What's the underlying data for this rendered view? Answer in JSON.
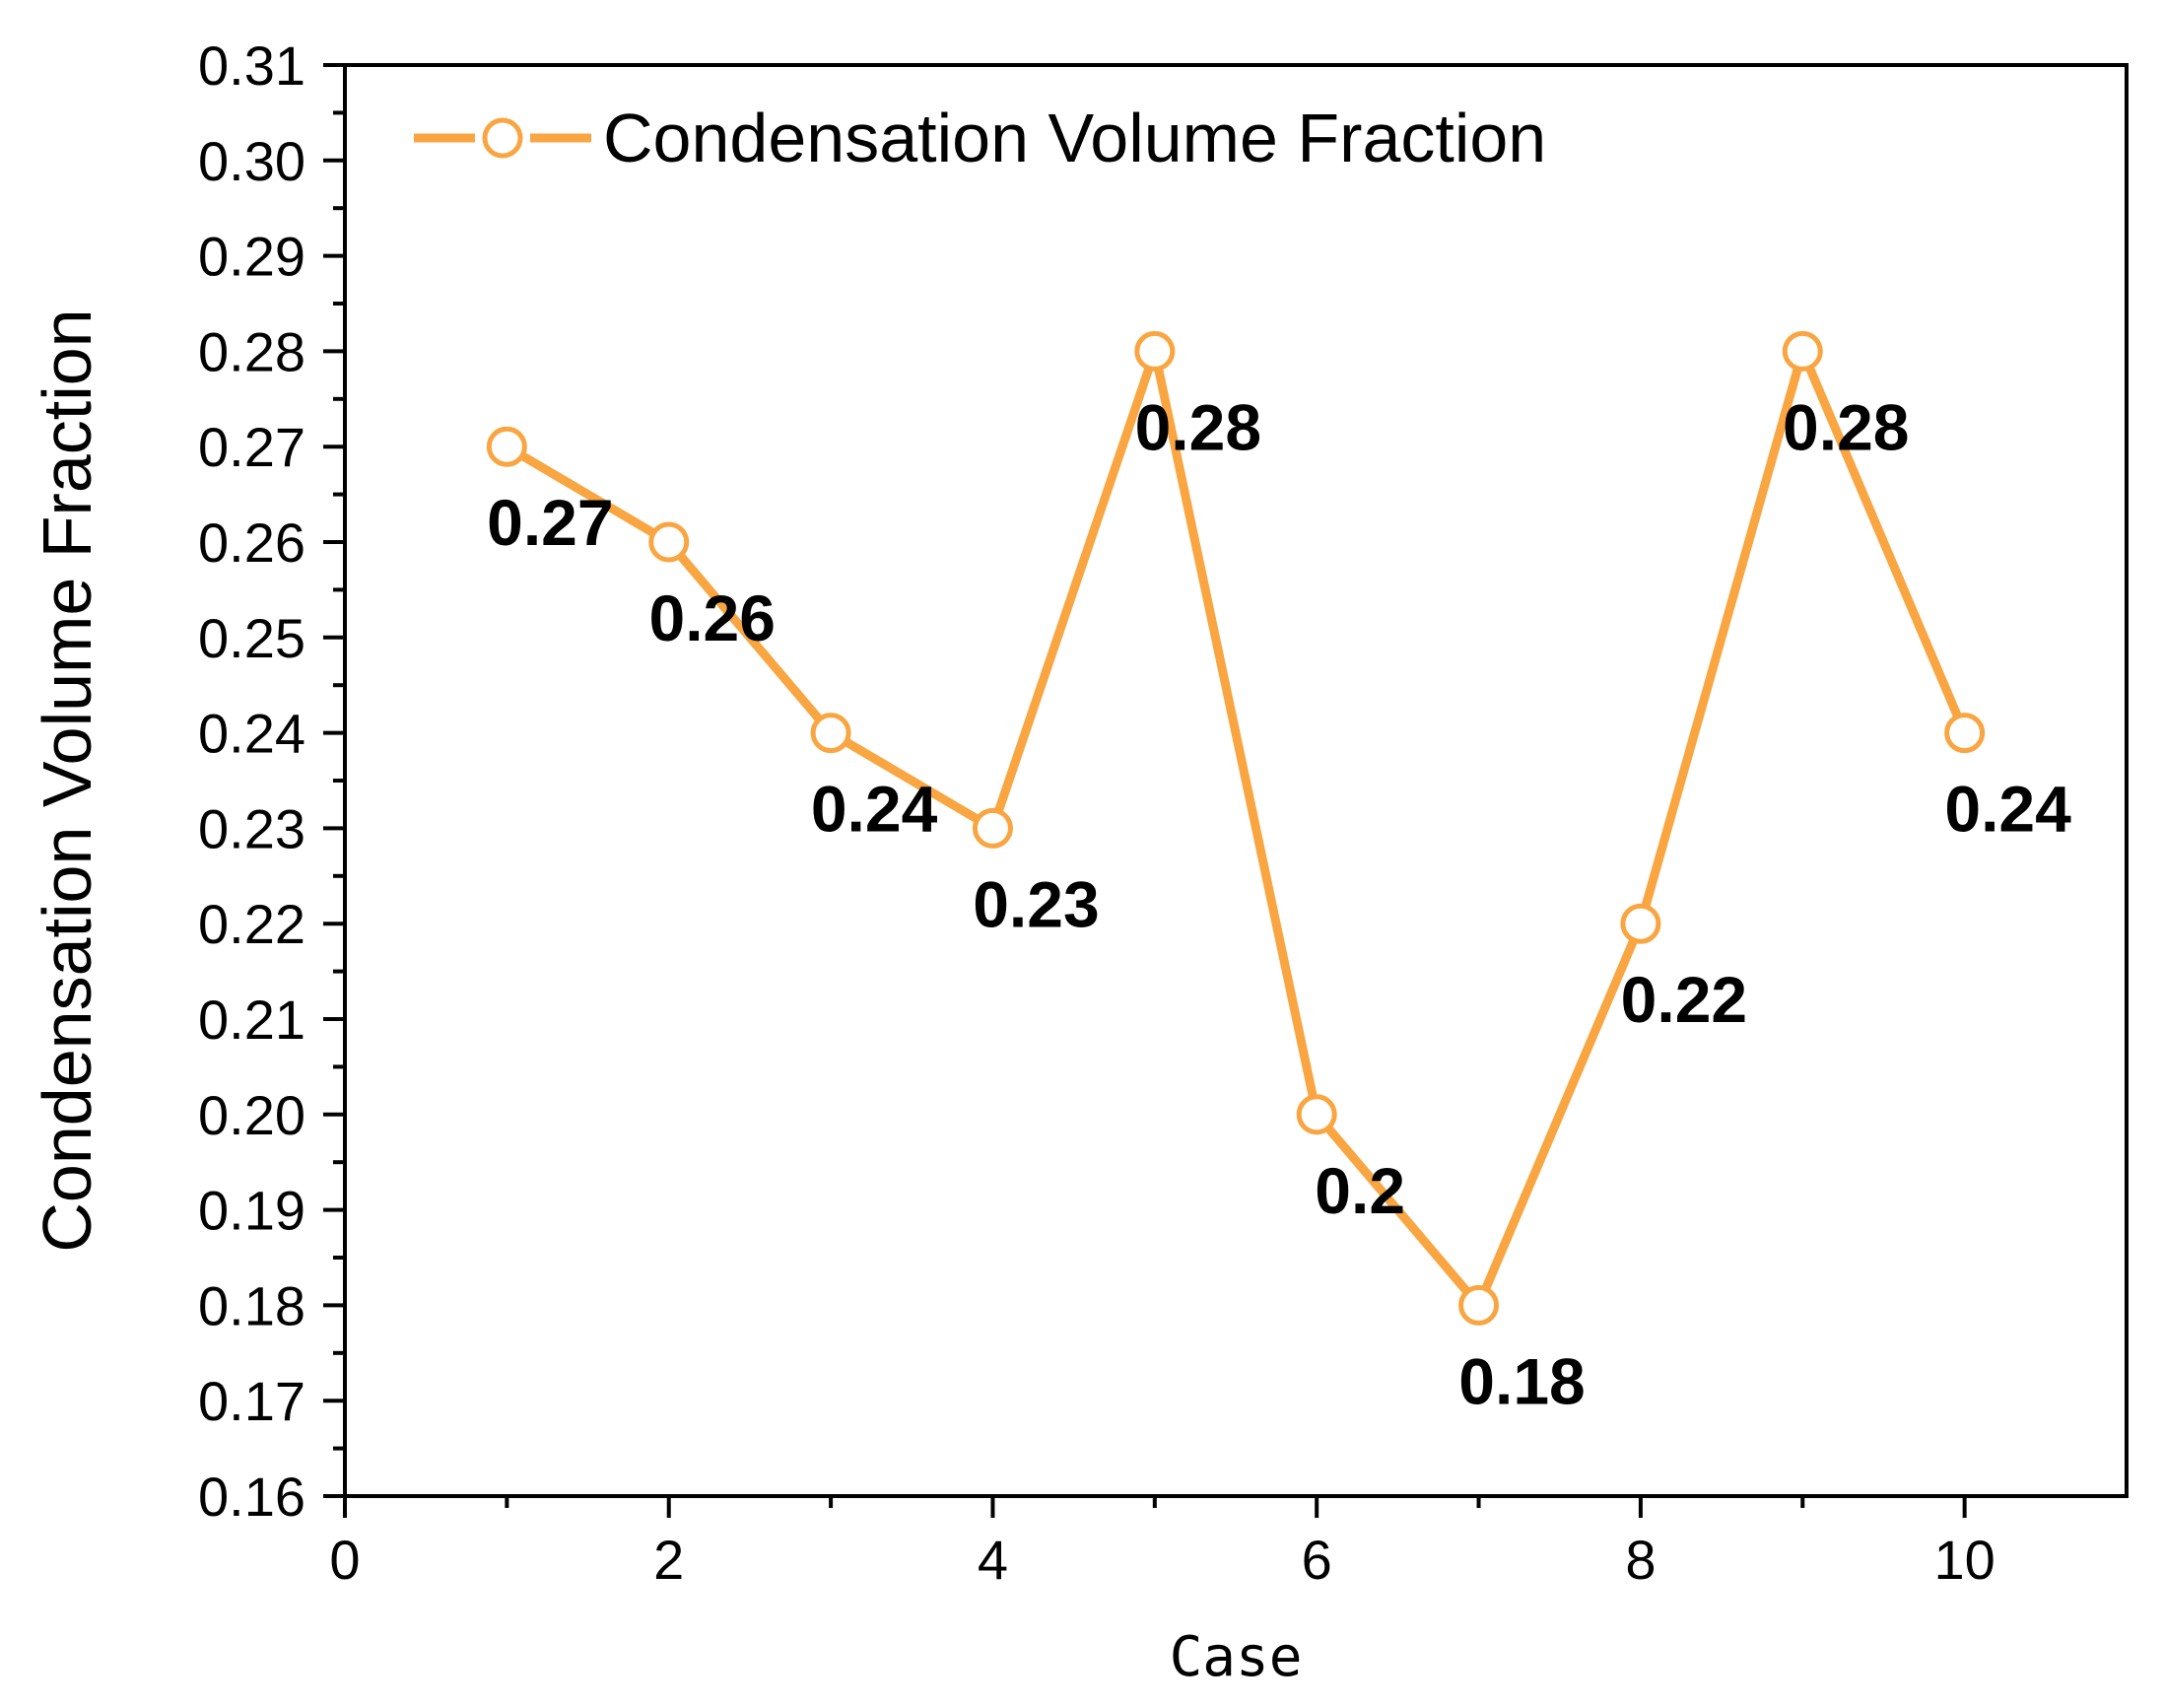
{
  "chart_data": {
    "type": "line",
    "title": "",
    "xlabel": "Case",
    "ylabel": "Condensation Volume Fraction",
    "xlim": [
      0,
      11
    ],
    "ylim": [
      0.16,
      0.31
    ],
    "x_ticks": [
      0,
      2,
      4,
      6,
      8,
      10
    ],
    "x_tick_labels": [
      "0",
      "2",
      "4",
      "6",
      "8",
      "10"
    ],
    "y_ticks": [
      0.16,
      0.17,
      0.18,
      0.19,
      0.2,
      0.21,
      0.22,
      0.23,
      0.24,
      0.25,
      0.26,
      0.27,
      0.28,
      0.29,
      0.3,
      0.31
    ],
    "y_tick_labels": [
      "0.16",
      "0.17",
      "0.18",
      "0.19",
      "0.20",
      "0.21",
      "0.22",
      "0.23",
      "0.24",
      "0.25",
      "0.26",
      "0.27",
      "0.28",
      "0.29",
      "0.30",
      "0.31"
    ],
    "grid": false,
    "legend_position": "top-left",
    "series": [
      {
        "name": "Condensation Volume Fraction",
        "color": "#F9A541",
        "marker": "open-circle",
        "x": [
          1,
          2,
          3,
          4,
          5,
          6,
          7,
          8,
          9,
          10
        ],
        "values": [
          0.27,
          0.26,
          0.24,
          0.23,
          0.28,
          0.2,
          0.18,
          0.22,
          0.28,
          0.24
        ],
        "data_labels": [
          "0.27",
          "0.26",
          "0.24",
          "0.23",
          "0.28",
          "0.2",
          "0.18",
          "0.22",
          "0.28",
          "0.24"
        ]
      }
    ]
  }
}
